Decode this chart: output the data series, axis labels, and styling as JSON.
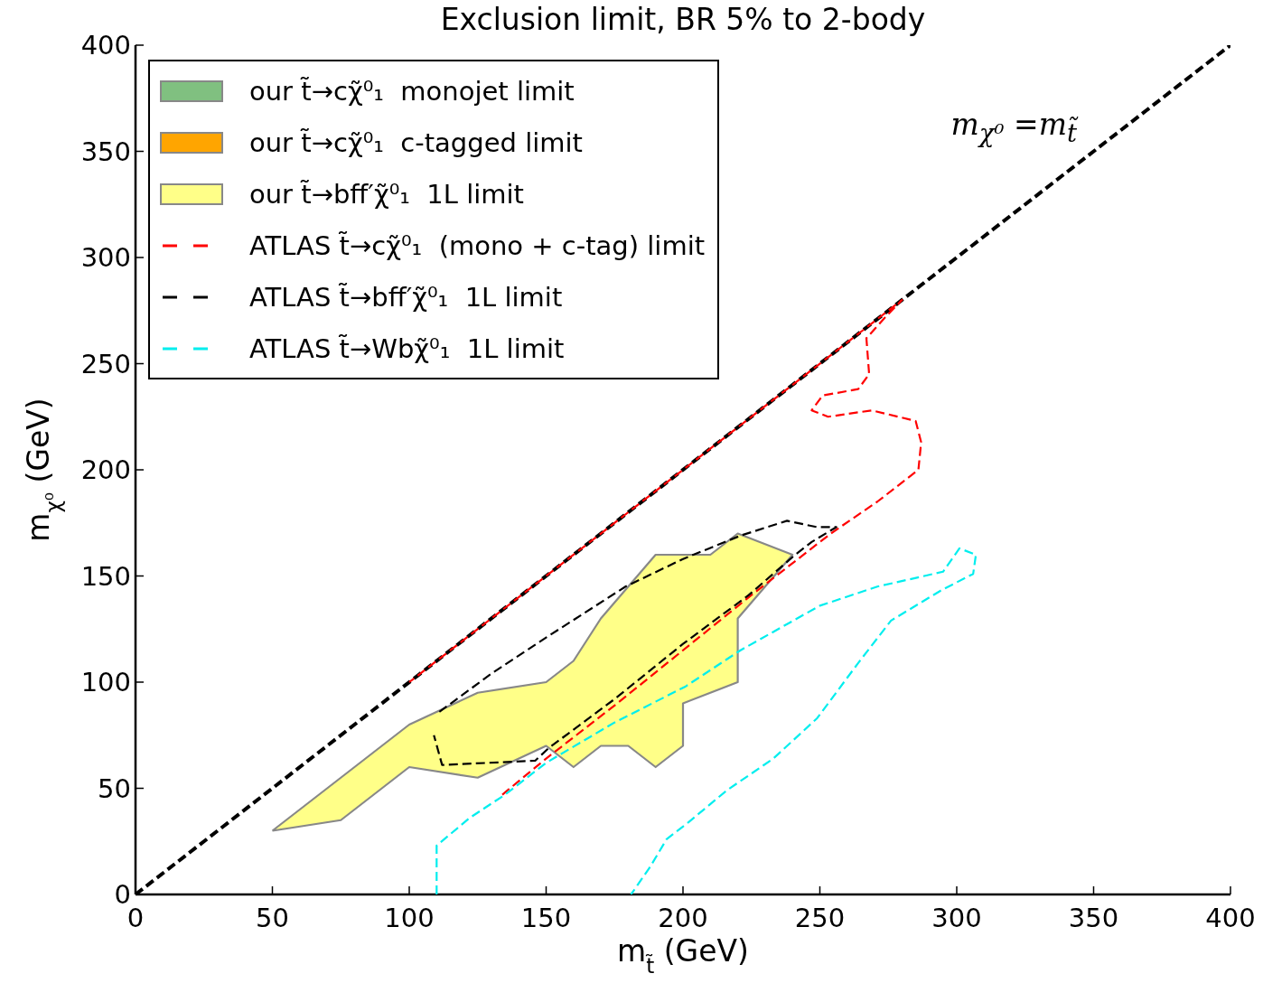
{
  "chart_data": {
    "type": "line",
    "title": "Exclusion limit, BR 5% to 2-body",
    "xlabel": "m$_{t̃}$ (GeV)",
    "ylabel": "m$_{χ⁰}$ (GeV)",
    "xlim": [
      0,
      400
    ],
    "ylim": [
      0,
      400
    ],
    "xticks": [
      0,
      50,
      100,
      150,
      200,
      250,
      300,
      350,
      400
    ],
    "yticks": [
      0,
      50,
      100,
      150,
      200,
      250,
      300,
      350,
      400
    ],
    "legend": "top left",
    "line_style": "dashed",
    "annotations": [
      "m$_{χ⁰}$ =m$_{t̃}$"
    ],
    "series": [
      {
        "type": "area",
        "name": "our t̃→cχ̃⁰₁  monojet limit",
        "color": "#80c080"
      },
      {
        "type": "area",
        "name": "our t̃→cχ̃⁰₁  c-tagged limit",
        "color": "#ffa500"
      },
      {
        "type": "area",
        "name": "our t̃→bff′χ̃⁰₁  1L limit",
        "color": "#ffff88",
        "x": [
          50,
          75,
          100,
          125,
          150,
          160,
          170,
          180,
          190,
          200,
          200,
          220,
          220,
          240,
          220,
          210,
          190,
          170,
          160,
          150,
          125,
          100,
          50
        ],
        "values": [
          30,
          35,
          60,
          55,
          70,
          60,
          70,
          70,
          60,
          70,
          90,
          100,
          130,
          160,
          170,
          160,
          160,
          130,
          110,
          100,
          95,
          80,
          30
        ]
      },
      {
        "color": "#000000",
        "x": [
          0,
          400
        ],
        "values": [
          0,
          400
        ]
      },
      {
        "name": "ATLAS t̃→cχ̃⁰₁  (mono + c-tag) limit",
        "color": "#ff0000",
        "x": [
          134,
          150,
          175,
          200,
          225,
          241,
          254,
          271,
          286,
          287,
          285,
          269,
          253,
          247,
          251,
          264,
          268,
          267,
          274,
          280,
          100
        ],
        "values": [
          47,
          64,
          89,
          115,
          141,
          157,
          170,
          185,
          200,
          213,
          223,
          228,
          225,
          228,
          235,
          238,
          245,
          262,
          272,
          280,
          100
        ]
      },
      {
        "name": "ATLAS t̃→bff′χ̃⁰₁  1L limit",
        "color": "#000000",
        "x": [
          111,
          130,
          150,
          179,
          200,
          221,
          238,
          249,
          256,
          247,
          241,
          224,
          200,
          175,
          151,
          146,
          112,
          109
        ],
        "values": [
          86,
          104,
          121,
          145,
          158,
          169,
          176,
          173,
          173,
          166,
          160,
          141,
          118,
          92,
          69,
          63,
          61,
          75
        ]
      },
      {
        "name": "ATLAS t̃→Wbχ̃⁰₁  1L limit",
        "color": "#00eeee",
        "x": [
          110,
          110,
          122,
          135,
          150,
          175,
          201,
          221,
          250,
          271,
          295,
          301,
          307,
          306,
          294,
          276,
          264,
          249,
          233,
          216,
          202,
          194,
          188,
          181
        ],
        "values": [
          0,
          23,
          36,
          47,
          62,
          81,
          98,
          115,
          136,
          145,
          152,
          163,
          160,
          151,
          143,
          129,
          109,
          83,
          64,
          49,
          34,
          26,
          13,
          0
        ]
      }
    ]
  }
}
